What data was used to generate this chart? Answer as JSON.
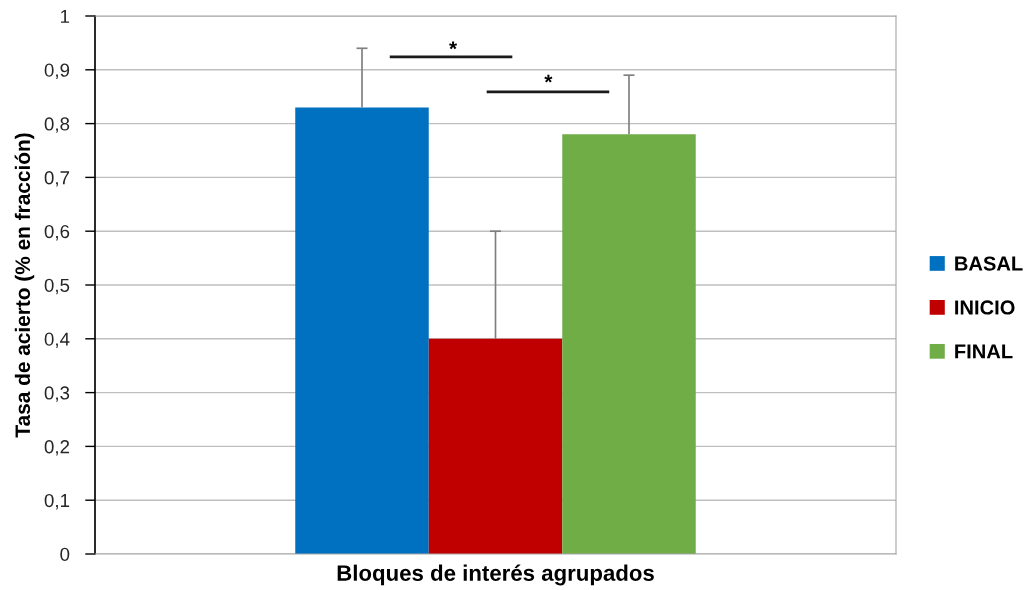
{
  "chart_data": {
    "type": "bar",
    "categories": [
      null
    ],
    "xlabel": "Bloques de interés agrupados",
    "ylabel": "Tasa de acierto (% en fracción)",
    "series": [
      {
        "name": "BASAL",
        "color": "#0070c0",
        "values": [
          0.83
        ],
        "errors": [
          [
            0.83,
            0.94
          ]
        ]
      },
      {
        "name": "INICIO",
        "color": "#c00000",
        "values": [
          0.4
        ],
        "errors": [
          [
            0.4,
            0.6
          ]
        ]
      },
      {
        "name": "FINAL",
        "color": "#70ad47",
        "values": [
          0.78
        ],
        "errors": [
          [
            0.78,
            0.89
          ]
        ]
      }
    ],
    "ylim": [
      0,
      1
    ],
    "yticks": [
      0,
      {
        "value": 0.1,
        "label": "0,1"
      },
      {
        "value": 0.2,
        "label": "0,2"
      },
      {
        "value": 0.3,
        "label": "0,3"
      },
      {
        "value": 0.4,
        "label": "0,4"
      },
      {
        "value": 0.5,
        "label": "0,5"
      },
      {
        "value": 0.6,
        "label": "0,6"
      },
      {
        "value": 0.7,
        "label": "0,7"
      },
      {
        "value": 0.8,
        "label": "0,8"
      },
      {
        "value": 0.9,
        "label": "0,9"
      },
      1
    ],
    "grid": "y",
    "legend": "right",
    "annotations": [
      "*",
      "*"
    ]
  }
}
